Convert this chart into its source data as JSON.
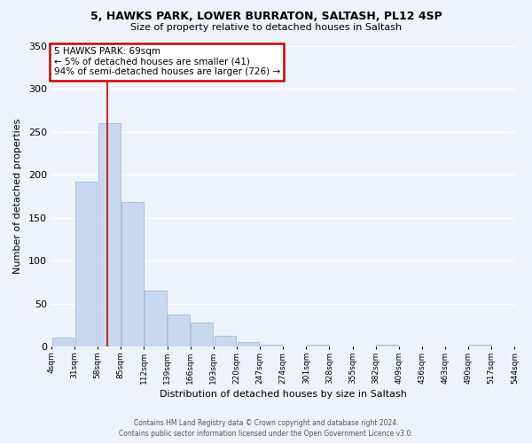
{
  "title1": "5, HAWKS PARK, LOWER BURRATON, SALTASH, PL12 4SP",
  "title2": "Size of property relative to detached houses in Saltash",
  "xlabel": "Distribution of detached houses by size in Saltash",
  "ylabel": "Number of detached properties",
  "bar_color": "#c8d8ee",
  "bar_edge_color": "#a0bcd8",
  "red_line_x": 69,
  "bin_edges": [
    4,
    31,
    58,
    85,
    112,
    139,
    166,
    193,
    220,
    247,
    274,
    301,
    328,
    355,
    382,
    409,
    436,
    463,
    490,
    517,
    544
  ],
  "bar_heights": [
    10,
    192,
    260,
    168,
    65,
    37,
    28,
    12,
    5,
    2,
    0,
    2,
    0,
    0,
    2,
    0,
    0,
    0,
    2,
    0
  ],
  "ylim": [
    0,
    350
  ],
  "yticks": [
    0,
    50,
    100,
    150,
    200,
    250,
    300,
    350
  ],
  "xtick_labels": [
    "4sqm",
    "31sqm",
    "58sqm",
    "85sqm",
    "112sqm",
    "139sqm",
    "166sqm",
    "193sqm",
    "220sqm",
    "247sqm",
    "274sqm",
    "301sqm",
    "328sqm",
    "355sqm",
    "382sqm",
    "409sqm",
    "436sqm",
    "463sqm",
    "490sqm",
    "517sqm",
    "544sqm"
  ],
  "annotation_title": "5 HAWKS PARK: 69sqm",
  "annotation_line1": "← 5% of detached houses are smaller (41)",
  "annotation_line2": "94% of semi-detached houses are larger (726) →",
  "annotation_box_color": "#ffffff",
  "annotation_box_edge_color": "#cc0000",
  "footer1": "Contains HM Land Registry data © Crown copyright and database right 2024.",
  "footer2": "Contains public sector information licensed under the Open Government Licence v3.0.",
  "background_color": "#eef2fb",
  "grid_color": "#ffffff"
}
